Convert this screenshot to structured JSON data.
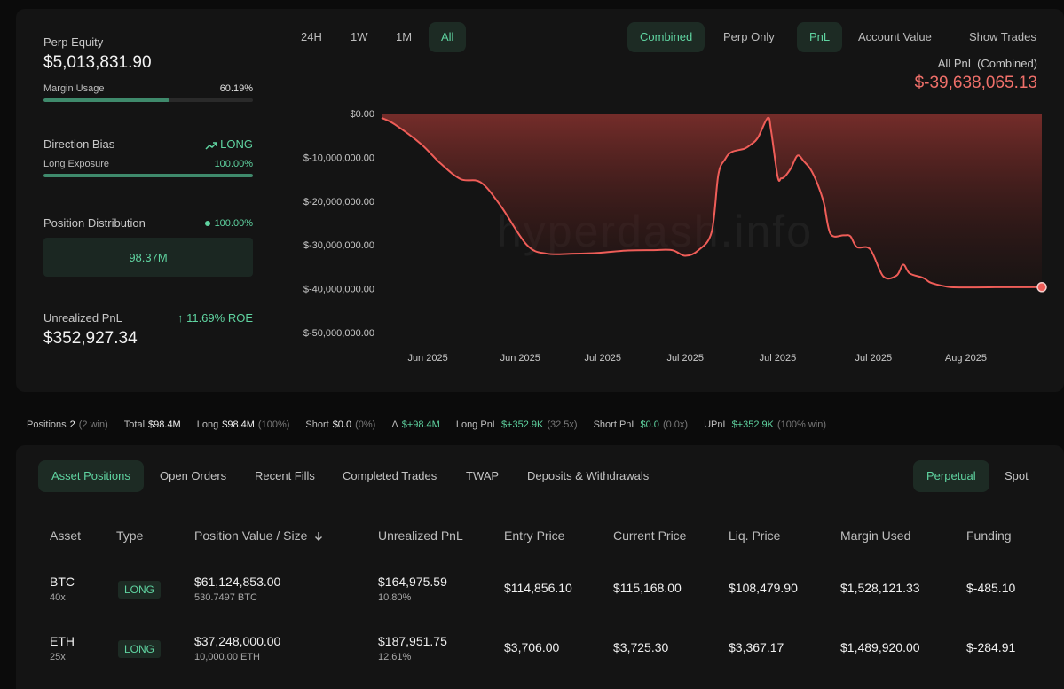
{
  "stats": {
    "perp_equity_label": "Perp Equity",
    "perp_equity_value": "$5,013,831.90",
    "margin_usage_label": "Margin Usage",
    "margin_usage_value": "60.19%",
    "margin_usage_fraction": 0.6019,
    "direction_bias_label": "Direction Bias",
    "direction_bias_value": "LONG",
    "long_exposure_label": "Long Exposure",
    "long_exposure_value": "100.00%",
    "long_exposure_fraction": 1.0,
    "position_distribution_label": "Position Distribution",
    "position_distribution_value": "100.00%",
    "distribution_box_value": "98.37M",
    "unrealized_pnl_label": "Unrealized PnL",
    "roe_value": "11.69% ROE",
    "unrealized_pnl_value": "$352,927.34"
  },
  "controls": {
    "ranges": [
      "24H",
      "1W",
      "1M",
      "All"
    ],
    "active_range": "All",
    "modes": [
      "Combined",
      "Perp Only"
    ],
    "active_mode": "Combined",
    "metrics": [
      "PnL",
      "Account Value"
    ],
    "active_metric": "PnL",
    "show_trades": "Show Trades"
  },
  "chart_header": {
    "title": "All PnL (Combined)",
    "value": "$-39,638,065.13"
  },
  "watermark": "hyperdash.info",
  "chart_data": {
    "type": "area",
    "title": "All PnL (Combined)",
    "y_tick_labels": [
      "$0.00",
      "$-10,000,000.00",
      "$-20,000,000.00",
      "$-30,000,000.00",
      "$-40,000,000.00",
      "$-50,000,000.00"
    ],
    "y_ticks": [
      0,
      -10000000,
      -20000000,
      -30000000,
      -40000000,
      -50000000
    ],
    "ylim": [
      -50000000,
      0
    ],
    "x_tick_labels": [
      "Jun 2025",
      "Jun 2025",
      "Jul 2025",
      "Jul 2025",
      "Jul 2025",
      "Jul 2025",
      "Aug 2025"
    ],
    "x_tick_positions": [
      0.07,
      0.21,
      0.335,
      0.46,
      0.6,
      0.745,
      0.885
    ],
    "x_points": [
      0,
      0.02,
      0.06,
      0.09,
      0.12,
      0.15,
      0.18,
      0.22,
      0.25,
      0.29,
      0.33,
      0.37,
      0.41,
      0.44,
      0.46,
      0.48,
      0.5,
      0.51,
      0.52,
      0.53,
      0.55,
      0.56,
      0.57,
      0.585,
      0.59,
      0.6,
      0.605,
      0.61,
      0.62,
      0.63,
      0.64,
      0.65,
      0.66,
      0.67,
      0.68,
      0.7,
      0.71,
      0.72,
      0.74,
      0.76,
      0.78,
      0.79,
      0.8,
      0.82,
      0.83,
      0.84,
      0.86,
      0.88,
      0.9,
      0.93,
      0.96,
      1.0
    ],
    "y_values": [
      -1000000,
      -2500000,
      -7000000,
      -11500000,
      -15000000,
      -15700000,
      -21000000,
      -30000000,
      -32000000,
      -32000000,
      -31800000,
      -31300000,
      -31200000,
      -31200000,
      -32500000,
      -31200000,
      -27000000,
      -14000000,
      -10500000,
      -8800000,
      -8000000,
      -7000000,
      -5500000,
      -1000000,
      -4000000,
      -14500000,
      -14800000,
      -14500000,
      -12500000,
      -9600000,
      -11000000,
      -12800000,
      -16000000,
      -20500000,
      -27500000,
      -27800000,
      -28000000,
      -30500000,
      -31000000,
      -37200000,
      -37000000,
      -34500000,
      -36500000,
      -37500000,
      -38500000,
      -39000000,
      -39600000,
      -39700000,
      -39700000,
      -39650000,
      -39640000,
      -39638065
    ],
    "line_color": "#ef5d58",
    "grid": false
  },
  "summary": {
    "positions_label": "Positions",
    "positions_value": "2",
    "positions_note": "(2 win)",
    "total_label": "Total",
    "total_value": "$98.4M",
    "long_label": "Long",
    "long_value": "$98.4M",
    "long_note": "(100%)",
    "short_label": "Short",
    "short_value": "$0.0",
    "short_note": "(0%)",
    "delta_label": "Δ",
    "delta_value": "$+98.4M",
    "long_pnl_label": "Long PnL",
    "long_pnl_value": "$+352.9K",
    "long_pnl_note": "(32.5x)",
    "short_pnl_label": "Short PnL",
    "short_pnl_value": "$0.0",
    "short_pnl_note": "(0.0x)",
    "upnl_label": "UPnL",
    "upnl_value": "$+352.9K",
    "upnl_note": "(100% win)"
  },
  "tabs": [
    "Asset Positions",
    "Open Orders",
    "Recent Fills",
    "Completed Trades",
    "TWAP",
    "Deposits & Withdrawals"
  ],
  "active_tab": "Asset Positions",
  "market_tabs": [
    "Perpetual",
    "Spot"
  ],
  "active_market_tab": "Perpetual",
  "table": {
    "headers": [
      "Asset",
      "Type",
      "Position Value / Size",
      "Unrealized PnL",
      "Entry Price",
      "Current Price",
      "Liq. Price",
      "Margin Used",
      "Funding"
    ],
    "sort_icon": "arrow-down-icon",
    "rows": [
      {
        "asset": "BTC",
        "leverage": "40x",
        "type": "LONG",
        "position_value": "$61,124,853.00",
        "size": "530.7497 BTC",
        "upnl": "$164,975.59",
        "upnl_pct": "10.80%",
        "entry": "$114,856.10",
        "current": "$115,168.00",
        "liq": "$108,479.90",
        "margin": "$1,528,121.33",
        "funding": "$-485.10"
      },
      {
        "asset": "ETH",
        "leverage": "25x",
        "type": "LONG",
        "position_value": "$37,248,000.00",
        "size": "10,000.00 ETH",
        "upnl": "$187,951.75",
        "upnl_pct": "12.61%",
        "entry": "$3,706.00",
        "current": "$3,725.30",
        "liq": "$3,367.17",
        "margin": "$1,489,920.00",
        "funding": "$-284.91"
      }
    ]
  }
}
